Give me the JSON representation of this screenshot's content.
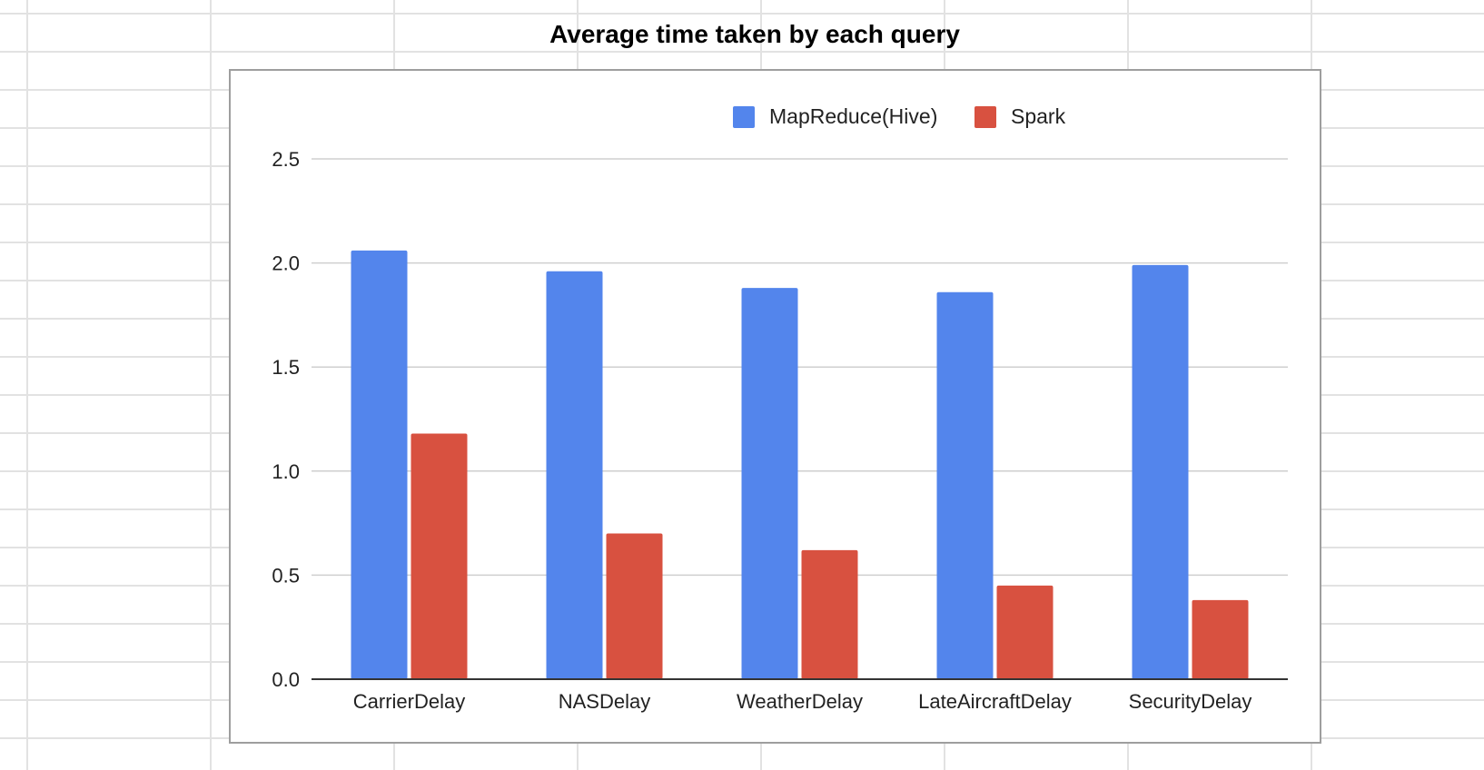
{
  "chart_data": {
    "type": "bar",
    "title": "Average time taken by each query",
    "categories": [
      "CarrierDelay",
      "NASDelay",
      "WeatherDelay",
      "LateAircraftDelay",
      "SecurityDelay"
    ],
    "series": [
      {
        "name": "MapReduce(Hive)",
        "color": "#5385ec",
        "values": [
          2.06,
          1.96,
          1.88,
          1.86,
          1.99
        ]
      },
      {
        "name": "Spark",
        "color": "#d85140",
        "values": [
          1.18,
          0.7,
          0.62,
          0.45,
          0.38
        ]
      }
    ],
    "yticks": [
      "0.0",
      "0.5",
      "1.0",
      "1.5",
      "2.0",
      "2.5"
    ],
    "ylim": [
      0,
      2.5
    ],
    "grid": true,
    "legend_position": "top"
  }
}
